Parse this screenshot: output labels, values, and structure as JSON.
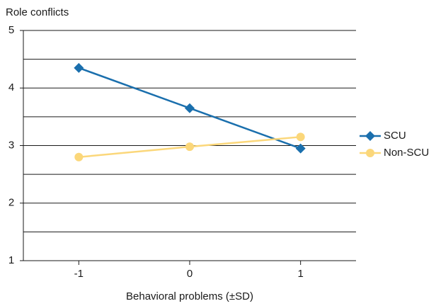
{
  "chart_data": {
    "type": "line",
    "y_label": "Role conflicts",
    "x_label": "Behavioral problems (±SD)",
    "x": [
      -1,
      0,
      1
    ],
    "xlim": [
      -1.5,
      1.5
    ],
    "xticks": [
      -1,
      0,
      1
    ],
    "ylim": [
      1,
      5
    ],
    "yticks": [
      1,
      2,
      3,
      4,
      5
    ],
    "grid": true,
    "legend": "right",
    "series": [
      {
        "name": "SCU",
        "color": "#1a6fad",
        "marker": "diamond",
        "values": [
          4.35,
          3.65,
          2.95
        ]
      },
      {
        "name": "Non-SCU",
        "color": "#fbd77a",
        "marker": "circle",
        "values": [
          2.8,
          2.98,
          3.15
        ]
      }
    ]
  }
}
